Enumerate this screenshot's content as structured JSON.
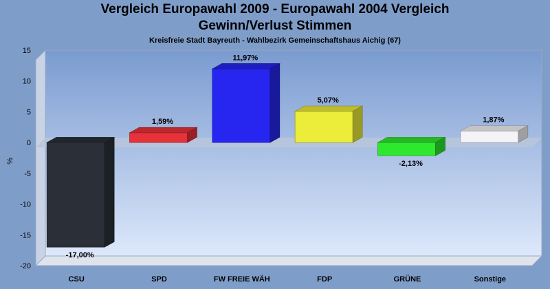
{
  "title": "Vergleich Europawahl 2009 - Europawahl 2004 Vergleich",
  "subtitle": "Gewinn/Verlust Stimmen",
  "subsubtitle": "Kreisfreie Stadt Bayreuth - Wahlbezirk Gemeinschaftshaus Aichig (67)",
  "chart_data": {
    "type": "bar",
    "title": "Vergleich Europawahl 2009 - Europawahl 2004 Vergleich",
    "subtitle": "Gewinn/Verlust Stimmen",
    "xlabel": "",
    "ylabel": "%",
    "ylim": [
      -20,
      15
    ],
    "yticks": [
      15,
      10,
      5,
      0,
      -5,
      -10,
      -15,
      -20
    ],
    "grid": false,
    "legend": "none",
    "categories": [
      "CSU",
      "SPD",
      "FW FREIE WÄH",
      "FDP",
      "GRÜNE",
      "Sonstige"
    ],
    "values": [
      -17.0,
      1.59,
      11.97,
      5.07,
      -2.13,
      1.87
    ],
    "data_labels": [
      "-17,00%",
      "1,59%",
      "11,97%",
      "5,07%",
      "-2,13%",
      "1,87%"
    ],
    "colors": [
      "#2b2f38",
      "#e8323a",
      "#2626f0",
      "#ecec3a",
      "#2ee82e",
      "#f4f4f8"
    ]
  }
}
